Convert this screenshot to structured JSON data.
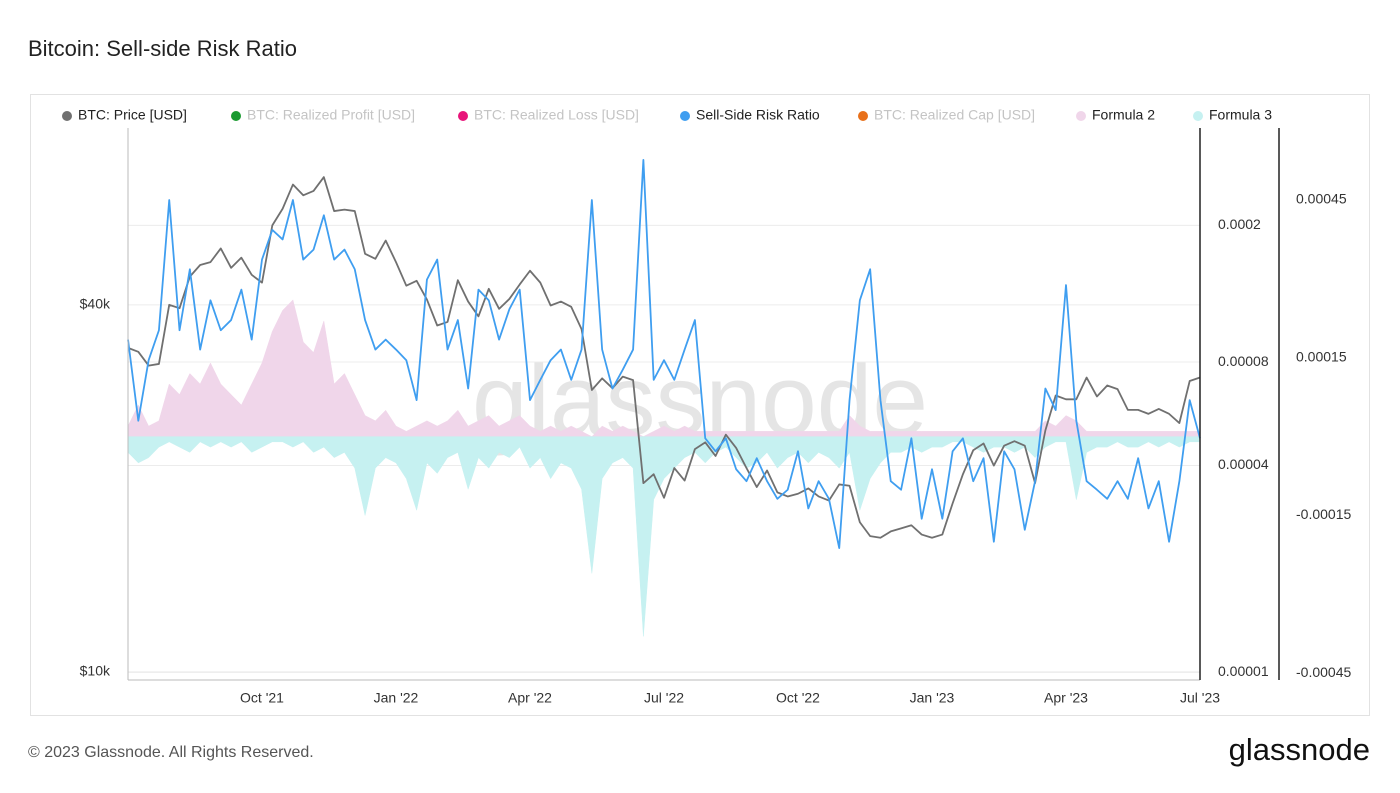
{
  "chart_data": {
    "type": "line",
    "title": "Bitcoin: Sell-side Risk Ratio",
    "watermark": "glassnode",
    "footer": "© 2023 Glassnode. All Rights Reserved.",
    "logo": "glassnode",
    "categories": [
      null,
      null,
      null,
      null,
      null,
      null,
      null,
      null,
      null,
      null,
      null,
      null,
      null,
      "Oct '21",
      null,
      null,
      null,
      null,
      null,
      null,
      null,
      null,
      null,
      null,
      null,
      null,
      "Jan '22",
      null,
      null,
      null,
      null,
      null,
      null,
      null,
      null,
      null,
      null,
      null,
      null,
      "Apr '22",
      null,
      null,
      null,
      null,
      null,
      null,
      null,
      null,
      null,
      null,
      null,
      null,
      "Jul '22",
      null,
      null,
      null,
      null,
      null,
      null,
      null,
      null,
      null,
      null,
      null,
      null,
      "Oct '22",
      null,
      null,
      null,
      null,
      null,
      null,
      null,
      null,
      null,
      null,
      null,
      null,
      "Jan '23",
      null,
      null,
      null,
      null,
      null,
      null,
      null,
      null,
      null,
      null,
      null,
      null,
      "Apr '23",
      null,
      null,
      null,
      null,
      null,
      null,
      null,
      null,
      null,
      null,
      null,
      null,
      "Jul '23"
    ],
    "yscale": "log",
    "ylim": [
      9700,
      78000
    ],
    "yticks": [
      {
        "value": 10000,
        "label": "$10k"
      },
      {
        "value": 40000,
        "label": "$40k"
      }
    ],
    "y2scale": "log",
    "y2lim": [
      9.5e-06,
      0.000384
    ],
    "y2ticks": [
      1e-05,
      4e-05,
      8e-05,
      0.0002
    ],
    "y3lim": [
      -0.000463,
      0.000587
    ],
    "y3ticks": [
      -0.00045,
      -0.00015,
      0.00015,
      0.00045
    ],
    "grid": true,
    "legend": "top",
    "series": [
      {
        "name": "BTC: Price [USD]",
        "color": "#707070",
        "axis": "y",
        "style": "line",
        "values": [
          34000,
          33500,
          31800,
          32000,
          40000,
          39500,
          44500,
          46500,
          47000,
          49500,
          46000,
          47800,
          44800,
          43500,
          54000,
          57500,
          63000,
          60500,
          61500,
          64800,
          57000,
          57300,
          57000,
          48500,
          47600,
          51000,
          47000,
          43000,
          43800,
          40800,
          37000,
          37500,
          43900,
          40500,
          38300,
          42500,
          39400,
          40900,
          43200,
          45500,
          43500,
          39900,
          40500,
          39700,
          36500,
          29000,
          30300,
          29200,
          30500,
          30100,
          20400,
          21100,
          19300,
          21600,
          20600,
          23200,
          23800,
          22600,
          24500,
          23300,
          21600,
          20100,
          21400,
          19700,
          19400,
          19600,
          20000,
          19400,
          19100,
          20300,
          20200,
          17600,
          16700,
          16600,
          17000,
          17200,
          17400,
          16800,
          16600,
          16800,
          18900,
          21100,
          23100,
          23700,
          21800,
          23500,
          23900,
          23500,
          20400,
          24900,
          28400,
          28000,
          28000,
          30400,
          28300,
          29500,
          29100,
          26900,
          26900,
          26500,
          27000,
          26500,
          25600,
          30000,
          30400
        ]
      },
      {
        "name": "BTC: Realized Profit [USD]",
        "color": "#1a9a30",
        "hidden": true
      },
      {
        "name": "BTC: Realized Loss [USD]",
        "color": "#e8157a",
        "hidden": true
      },
      {
        "name": "Sell-Side Risk Ratio",
        "color": "#3f9ef0",
        "axis": "y2",
        "style": "line",
        "values": [
          9.3e-05,
          5.4e-05,
          8.1e-05,
          9.9e-05,
          0.000237,
          9.9e-05,
          0.000149,
          8.7e-05,
          0.000121,
          9.9e-05,
          0.000106,
          0.00013,
          9.3e-05,
          0.000159,
          0.000194,
          0.000182,
          0.000237,
          0.000159,
          0.00017,
          0.000214,
          0.000159,
          0.00017,
          0.000149,
          0.000106,
          8.7e-05,
          9.3e-05,
          8.7e-05,
          8.1e-05,
          6.2e-05,
          0.000139,
          0.000159,
          8.7e-05,
          0.000106,
          6.7e-05,
          0.00013,
          0.000121,
          9.3e-05,
          0.000114,
          0.00013,
          6.2e-05,
          7.1e-05,
          8.1e-05,
          8.7e-05,
          7.1e-05,
          8.7e-05,
          0.000237,
          8.7e-05,
          6.7e-05,
          7.6e-05,
          8.7e-05,
          0.00031,
          7.1e-05,
          8.1e-05,
          7.1e-05,
          8.7e-05,
          0.000106,
          4.8e-05,
          4.4e-05,
          4.8e-05,
          3.9e-05,
          3.6e-05,
          4.2e-05,
          3.6e-05,
          3.2e-05,
          3.4e-05,
          4.4e-05,
          3e-05,
          3.6e-05,
          3.2e-05,
          2.3e-05,
          6.2e-05,
          0.000121,
          0.000149,
          6.2e-05,
          3.6e-05,
          3.4e-05,
          4.8e-05,
          2.8e-05,
          3.9e-05,
          2.8e-05,
          4.4e-05,
          4.8e-05,
          3.6e-05,
          4.2e-05,
          2.4e-05,
          4.4e-05,
          3.9e-05,
          2.6e-05,
          3.6e-05,
          6.7e-05,
          5.8e-05,
          0.000134,
          5.4e-05,
          3.6e-05,
          3.4e-05,
          3.2e-05,
          3.6e-05,
          3.2e-05,
          4.2e-05,
          3e-05,
          3.6e-05,
          2.4e-05,
          3.6e-05,
          6.2e-05,
          4.8e-05
        ]
      },
      {
        "name": "BTC: Realized Cap [USD]",
        "color": "#e8701a",
        "hidden": true
      },
      {
        "name": "Formula 2",
        "color": "#f0d6ea",
        "axis": "y3",
        "style": "area",
        "values": [
          2e-05,
          6e-05,
          2e-05,
          3e-05,
          0.0001,
          8e-05,
          0.00012,
          0.0001,
          0.00014,
          0.0001,
          8e-05,
          6e-05,
          0.0001,
          0.00014,
          0.0002,
          0.00024,
          0.00026,
          0.00018,
          0.00016,
          0.00022,
          0.0001,
          0.00012,
          8e-05,
          4e-05,
          3e-05,
          5e-05,
          2e-05,
          1e-05,
          2e-05,
          3e-05,
          2e-05,
          3e-05,
          5e-05,
          2e-05,
          3e-05,
          4e-05,
          2e-05,
          3e-05,
          4e-05,
          2e-05,
          1e-05,
          2e-05,
          1e-05,
          2e-05,
          1e-05,
          0,
          2e-05,
          1e-05,
          2e-05,
          1e-05,
          0,
          1e-05,
          2e-05,
          1e-05,
          2e-05,
          1e-05,
          1e-05,
          1e-05,
          1e-05,
          1e-05,
          1e-05,
          1e-05,
          1e-05,
          1e-05,
          1e-05,
          1e-05,
          1e-05,
          1e-05,
          1e-05,
          1e-05,
          4e-05,
          2e-05,
          1e-05,
          1e-05,
          1e-05,
          1e-05,
          1e-05,
          1e-05,
          1e-05,
          1e-05,
          1e-05,
          1e-05,
          1e-05,
          1e-05,
          1e-05,
          1e-05,
          1e-05,
          1e-05,
          1e-05,
          3e-05,
          2e-05,
          4e-05,
          3e-05,
          1e-05,
          1e-05,
          1e-05,
          1e-05,
          1e-05,
          1e-05,
          1e-05,
          1e-05,
          1e-05,
          1e-05,
          1e-05,
          1e-05
        ]
      },
      {
        "name": "Formula 3",
        "color": "#c6f1f1",
        "axis": "y3",
        "style": "area",
        "values": [
          -3e-05,
          -5e-05,
          -4e-05,
          -2e-05,
          -1e-05,
          -2e-05,
          -3e-05,
          -1e-05,
          -2e-05,
          -1e-05,
          -2e-05,
          -1e-05,
          -3e-05,
          -2e-05,
          -1e-05,
          -1e-05,
          -2e-05,
          -1e-05,
          -3e-05,
          -2e-05,
          -4e-05,
          -3e-05,
          -6e-05,
          -0.00015,
          -6e-05,
          -4e-05,
          -5e-05,
          -8e-05,
          -0.00014,
          -5e-05,
          -7e-05,
          -4e-05,
          -3e-05,
          -0.0001,
          -4e-05,
          -6e-05,
          -3e-05,
          -4e-05,
          -2e-05,
          -6e-05,
          -4e-05,
          -8e-05,
          -5e-05,
          -6e-05,
          -0.0001,
          -0.00026,
          -8e-05,
          -5e-05,
          -4e-05,
          -6e-05,
          -0.00038,
          -0.00012,
          -8e-05,
          -6e-05,
          -4e-05,
          -3e-05,
          -5e-05,
          -3e-05,
          -2e-05,
          -4e-05,
          -6e-05,
          -5e-05,
          -3e-05,
          -6e-05,
          -4e-05,
          -3e-05,
          -5e-05,
          -3e-05,
          -4e-05,
          -6e-05,
          -3e-05,
          -0.00014,
          -8e-05,
          -5e-05,
          -3e-05,
          -3e-05,
          -2e-05,
          -3e-05,
          -2e-05,
          -2e-05,
          -1e-05,
          -1e-05,
          -2e-05,
          -3e-05,
          -2e-05,
          -2e-05,
          -3e-05,
          -2e-05,
          -4e-05,
          -2e-05,
          -1e-05,
          -1e-05,
          -0.00012,
          -3e-05,
          -2e-05,
          -2e-05,
          -1e-05,
          -2e-05,
          -2e-05,
          -1e-05,
          -2e-05,
          -1e-05,
          -2e-05,
          -1e-05,
          -1e-05
        ]
      }
    ]
  }
}
